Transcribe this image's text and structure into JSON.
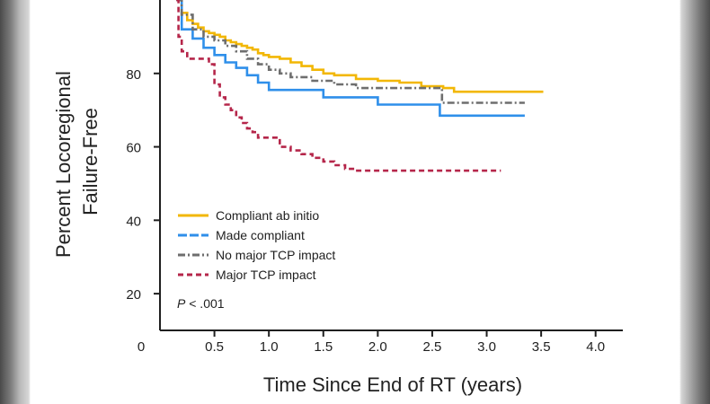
{
  "chart_data": {
    "type": "line",
    "title": "",
    "xlabel": "Time Since End of RT (years)",
    "ylabel_lines": [
      "Percent Locoregional",
      "Failure-Free"
    ],
    "xlim": [
      0,
      4.25
    ],
    "ylim": [
      10,
      100
    ],
    "x_ticks": [
      0.5,
      1.0,
      1.5,
      2.0,
      2.5,
      3.0,
      3.5,
      4.0
    ],
    "x_tick_labels": [
      "0.5",
      "1.0",
      "1.5",
      "2.0",
      "2.5",
      "3.0",
      "3.5",
      "4.0"
    ],
    "origin_label": "0",
    "y_ticks": [
      20,
      40,
      60,
      80
    ],
    "y_tick_labels": [
      "20",
      "40",
      "60",
      "80"
    ],
    "legend_position": "bottom-left",
    "annotation": {
      "p_letter": "P",
      "p_rest": " < .001"
    },
    "series": [
      {
        "name": "Compliant ab initio",
        "color": "#f2b705",
        "dash": "solid",
        "x": [
          0.15,
          0.2,
          0.25,
          0.3,
          0.35,
          0.4,
          0.45,
          0.5,
          0.55,
          0.6,
          0.65,
          0.7,
          0.75,
          0.8,
          0.85,
          0.9,
          0.95,
          1.0,
          1.1,
          1.2,
          1.3,
          1.4,
          1.5,
          1.6,
          1.8,
          2.0,
          2.2,
          2.4,
          2.6,
          2.7,
          3.0,
          3.2,
          3.35,
          3.5,
          3.52
        ],
        "y": [
          100,
          96.5,
          94.5,
          93.5,
          92.5,
          91.5,
          91,
          90.5,
          90,
          89,
          88.5,
          88,
          87.5,
          87,
          86.5,
          85.5,
          85,
          84.5,
          84,
          83,
          82,
          81,
          80,
          79.5,
          78.5,
          78,
          77.5,
          76.5,
          76,
          75,
          75,
          75,
          75,
          75,
          75
        ]
      },
      {
        "name": "Made compliant",
        "color": "#2f8fea",
        "dash": "solid",
        "x": [
          0.15,
          0.2,
          0.3,
          0.4,
          0.5,
          0.6,
          0.7,
          0.8,
          0.9,
          1.0,
          1.2,
          1.4,
          1.5,
          1.6,
          2.0,
          2.5,
          2.57,
          3.0,
          3.35
        ],
        "y": [
          100,
          92,
          89.5,
          87,
          85,
          83,
          81.5,
          79.5,
          77.5,
          75.5,
          75.5,
          75.5,
          73.5,
          73.5,
          71.5,
          71.5,
          68.5,
          68.5,
          68.5
        ]
      },
      {
        "name": "No major TCP impact",
        "color": "#6e6e6e",
        "dash": "dashdot",
        "x": [
          0.15,
          0.2,
          0.3,
          0.4,
          0.5,
          0.6,
          0.7,
          0.8,
          0.9,
          1.0,
          1.1,
          1.2,
          1.4,
          1.6,
          1.8,
          2.0,
          2.2,
          2.4,
          2.58,
          2.59,
          2.8,
          3.0,
          3.35
        ],
        "y": [
          100,
          96,
          92,
          90,
          89,
          87.5,
          86,
          84,
          82.5,
          81,
          80,
          79,
          78,
          77,
          76,
          76,
          76,
          76,
          76,
          72,
          72,
          72,
          72
        ]
      },
      {
        "name": "Major TCP impact",
        "color": "#b5264a",
        "dash": "dashed",
        "x": [
          0.15,
          0.17,
          0.2,
          0.25,
          0.3,
          0.35,
          0.4,
          0.45,
          0.5,
          0.55,
          0.6,
          0.65,
          0.7,
          0.75,
          0.8,
          0.85,
          0.9,
          1.0,
          1.1,
          1.2,
          1.3,
          1.4,
          1.5,
          1.6,
          1.7,
          1.8,
          2.0,
          2.4,
          2.8,
          3.13
        ],
        "y": [
          100,
          90,
          86,
          84,
          84,
          84,
          84,
          82.5,
          77,
          73.5,
          71.5,
          70,
          68,
          66.5,
          65,
          64,
          62.5,
          62.5,
          60,
          59,
          58,
          57,
          56,
          55,
          54,
          53.5,
          53.5,
          53.5,
          53.5,
          53.5
        ]
      }
    ]
  }
}
